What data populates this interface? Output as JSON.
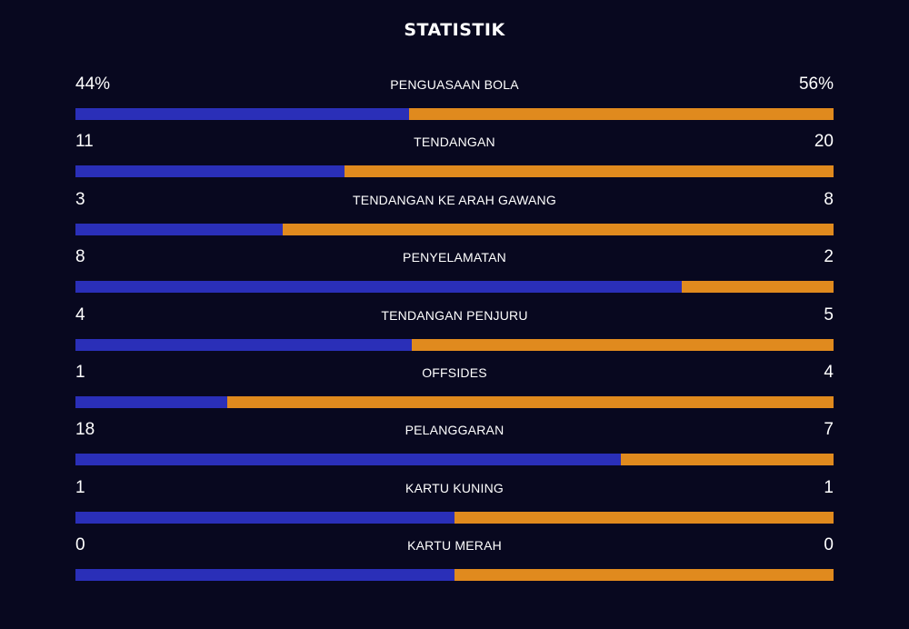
{
  "title": "STATISTIK",
  "colors": {
    "background": "#08081f",
    "home": "#2a2fb8",
    "away": "#e08a1e"
  },
  "stats": [
    {
      "label": "PENGUASAAN BOLA",
      "home": "44%",
      "away": "56%",
      "home_share": 0.44
    },
    {
      "label": "TENDANGAN",
      "home": "11",
      "away": "20",
      "home_share": 0.355
    },
    {
      "label": "TENDANGAN KE ARAH GAWANG",
      "home": "3",
      "away": "8",
      "home_share": 0.273
    },
    {
      "label": "PENYELAMATAN",
      "home": "8",
      "away": "2",
      "home_share": 0.8
    },
    {
      "label": "TENDANGAN PENJURU",
      "home": "4",
      "away": "5",
      "home_share": 0.444
    },
    {
      "label": "OFFSIDES",
      "home": "1",
      "away": "4",
      "home_share": 0.2
    },
    {
      "label": "PELANGGARAN",
      "home": "18",
      "away": "7",
      "home_share": 0.72
    },
    {
      "label": "KARTU KUNING",
      "home": "1",
      "away": "1",
      "home_share": 0.5
    },
    {
      "label": "KARTU MERAH",
      "home": "0",
      "away": "0",
      "home_share": 0.5
    }
  ]
}
